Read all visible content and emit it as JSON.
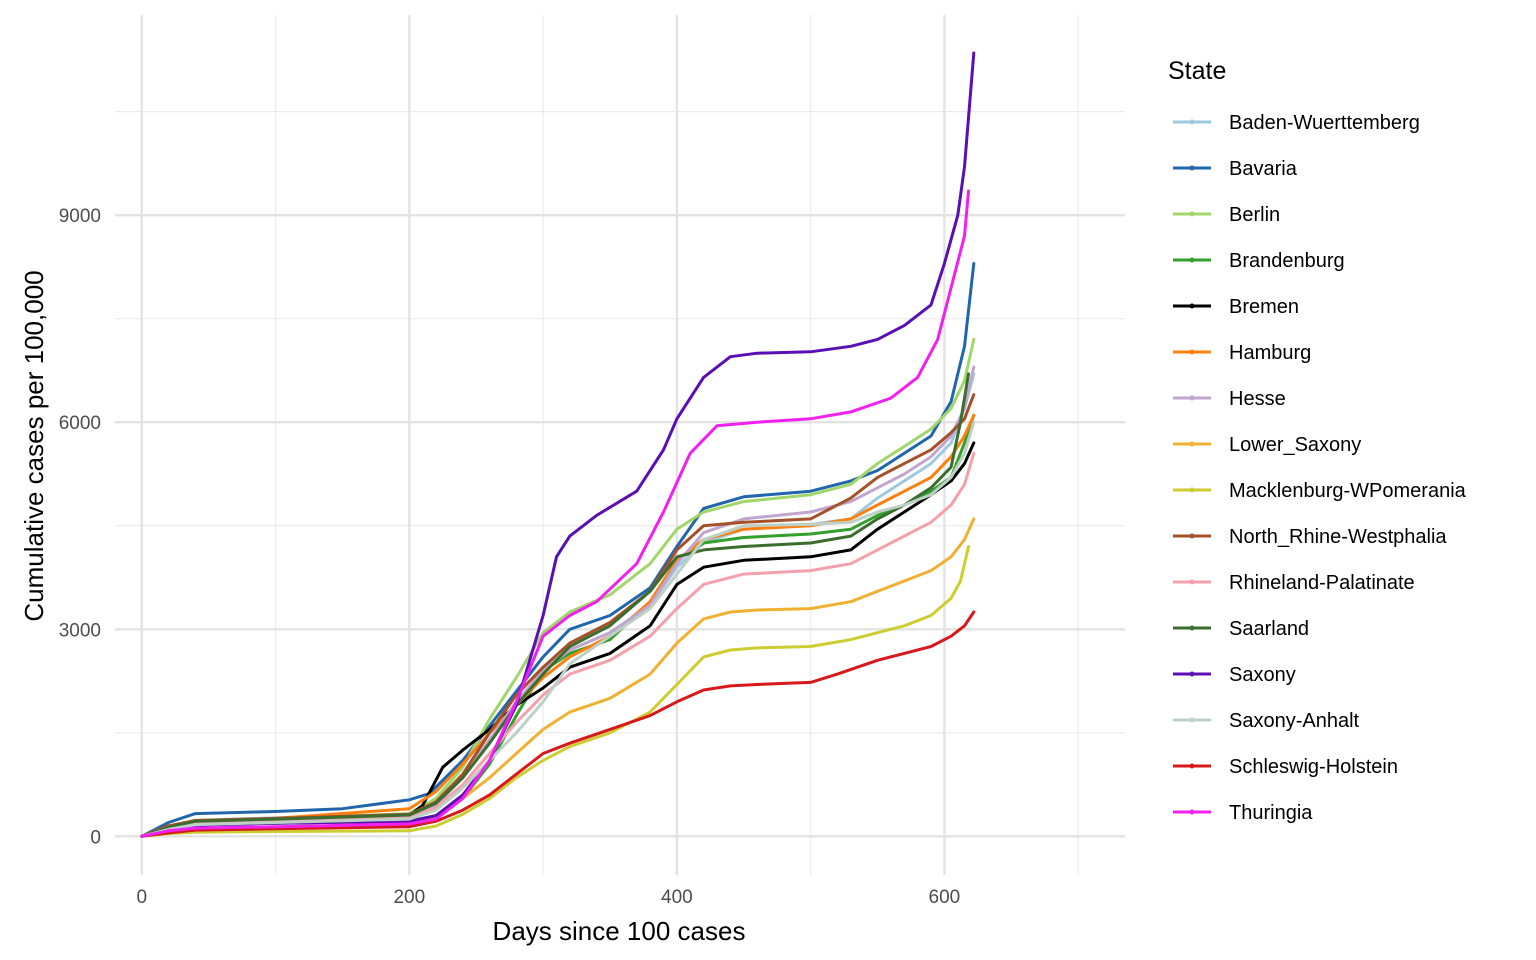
{
  "chart_data": {
    "type": "line",
    "title": "",
    "xlabel": "Days since 100 cases",
    "ylabel": "Cumulative cases per 100,000",
    "xlim": [
      -20,
      735
    ],
    "ylim": [
      -560,
      11900
    ],
    "x_ticks": [
      0,
      200,
      400,
      600
    ],
    "x_tick_labels": [
      "0",
      "200",
      "400",
      "600"
    ],
    "x_minor_ticks": [
      100,
      300,
      500,
      700
    ],
    "y_ticks": [
      0,
      3000,
      6000,
      9000
    ],
    "y_tick_labels": [
      "0",
      "3000",
      "6000",
      "9000"
    ],
    "y_minor_ticks": [
      1500,
      4500,
      7500,
      10500
    ],
    "grid": true,
    "legend_title": "State",
    "legend_position": "right",
    "series": [
      {
        "name": "Baden-Wuerttemberg",
        "color": "#9ecae1",
        "x": [
          0,
          20,
          40,
          100,
          200,
          220,
          240,
          260,
          280,
          300,
          320,
          350,
          380,
          400,
          420,
          450,
          500,
          530,
          550,
          570,
          590,
          605,
          615,
          622
        ],
        "y": [
          0,
          120,
          230,
          270,
          320,
          500,
          900,
          1500,
          2050,
          2450,
          2700,
          2950,
          3350,
          3900,
          4250,
          4450,
          4520,
          4600,
          4900,
          5150,
          5400,
          5700,
          6200,
          6700
        ]
      },
      {
        "name": "Bavaria",
        "color": "#2166ac",
        "x": [
          0,
          20,
          40,
          100,
          150,
          200,
          215,
          240,
          260,
          280,
          300,
          320,
          350,
          380,
          400,
          420,
          450,
          500,
          530,
          550,
          570,
          590,
          605,
          615,
          622
        ],
        "y": [
          0,
          200,
          330,
          360,
          400,
          530,
          620,
          1100,
          1600,
          2100,
          2600,
          3000,
          3200,
          3600,
          4200,
          4750,
          4920,
          5000,
          5150,
          5300,
          5550,
          5800,
          6300,
          7100,
          8300
        ]
      },
      {
        "name": "Berlin",
        "color": "#a1d76a",
        "x": [
          0,
          20,
          40,
          100,
          200,
          220,
          240,
          260,
          280,
          300,
          320,
          350,
          380,
          400,
          420,
          450,
          500,
          530,
          550,
          570,
          590,
          605,
          615,
          622
        ],
        "y": [
          0,
          150,
          230,
          260,
          330,
          550,
          1000,
          1700,
          2300,
          2950,
          3250,
          3500,
          3950,
          4450,
          4700,
          4850,
          4950,
          5100,
          5400,
          5650,
          5900,
          6200,
          6600,
          7200
        ]
      },
      {
        "name": "Brandenburg",
        "color": "#33a02c",
        "x": [
          0,
          20,
          40,
          100,
          200,
          220,
          240,
          260,
          280,
          300,
          320,
          350,
          380,
          400,
          420,
          450,
          500,
          530,
          550,
          570,
          590,
          605,
          615,
          622
        ],
        "y": [
          0,
          100,
          170,
          190,
          220,
          300,
          550,
          1050,
          1750,
          2400,
          2650,
          2850,
          3400,
          4000,
          4250,
          4330,
          4380,
          4450,
          4650,
          4800,
          5000,
          5200,
          5700,
          6100
        ]
      },
      {
        "name": "Bremen",
        "color": "#000000",
        "x": [
          0,
          20,
          40,
          100,
          200,
          210,
          225,
          240,
          260,
          280,
          300,
          320,
          350,
          380,
          400,
          420,
          450,
          500,
          530,
          550,
          570,
          590,
          605,
          615,
          622
        ],
        "y": [
          0,
          120,
          200,
          230,
          300,
          450,
          1000,
          1250,
          1550,
          1900,
          2150,
          2450,
          2650,
          3050,
          3650,
          3900,
          4000,
          4050,
          4150,
          4450,
          4700,
          4950,
          5150,
          5400,
          5700
        ]
      },
      {
        "name": "Hamburg",
        "color": "#ff7f0e",
        "x": [
          0,
          20,
          40,
          100,
          200,
          220,
          240,
          260,
          280,
          300,
          320,
          350,
          380,
          400,
          420,
          450,
          500,
          530,
          550,
          570,
          590,
          605,
          615,
          622
        ],
        "y": [
          0,
          150,
          220,
          260,
          400,
          650,
          1050,
          1500,
          1900,
          2300,
          2600,
          2900,
          3400,
          4000,
          4300,
          4450,
          4500,
          4600,
          4800,
          5000,
          5200,
          5500,
          5800,
          6100
        ]
      },
      {
        "name": "Hesse",
        "color": "#c2a5cf",
        "x": [
          0,
          20,
          40,
          100,
          200,
          220,
          240,
          260,
          280,
          300,
          320,
          350,
          380,
          400,
          420,
          450,
          500,
          530,
          550,
          570,
          590,
          605,
          615,
          622
        ],
        "y": [
          0,
          130,
          200,
          230,
          300,
          450,
          850,
          1400,
          1950,
          2400,
          2700,
          2950,
          3350,
          3950,
          4400,
          4600,
          4700,
          4850,
          5050,
          5250,
          5500,
          5800,
          6200,
          6800
        ]
      },
      {
        "name": "Lower_Saxony",
        "color": "#f0b133",
        "x": [
          0,
          20,
          40,
          100,
          200,
          220,
          240,
          260,
          280,
          300,
          320,
          350,
          380,
          400,
          420,
          440,
          460,
          500,
          530,
          550,
          570,
          590,
          605,
          615,
          622
        ],
        "y": [
          0,
          70,
          110,
          130,
          170,
          300,
          550,
          850,
          1200,
          1550,
          1800,
          2000,
          2350,
          2800,
          3150,
          3250,
          3280,
          3300,
          3400,
          3550,
          3700,
          3850,
          4050,
          4300,
          4600
        ]
      },
      {
        "name": "Macklenburg-WPomerania",
        "color": "#cdcd32",
        "x": [
          0,
          20,
          40,
          100,
          200,
          220,
          240,
          260,
          280,
          300,
          320,
          350,
          380,
          400,
          420,
          440,
          460,
          500,
          530,
          550,
          570,
          590,
          605,
          612,
          618
        ],
        "y": [
          0,
          40,
          60,
          70,
          80,
          150,
          320,
          550,
          850,
          1100,
          1300,
          1500,
          1800,
          2200,
          2600,
          2700,
          2730,
          2750,
          2850,
          2950,
          3050,
          3200,
          3450,
          3700,
          4200
        ]
      },
      {
        "name": "North_Rhine-Westphalia",
        "color": "#a6502a",
        "x": [
          0,
          20,
          40,
          100,
          200,
          220,
          240,
          260,
          280,
          300,
          320,
          350,
          380,
          400,
          420,
          450,
          500,
          530,
          550,
          570,
          590,
          605,
          615,
          622
        ],
        "y": [
          0,
          150,
          230,
          260,
          320,
          500,
          900,
          1500,
          2050,
          2450,
          2800,
          3100,
          3550,
          4150,
          4500,
          4550,
          4600,
          4900,
          5200,
          5400,
          5600,
          5850,
          6050,
          6400
        ]
      },
      {
        "name": "Rhineland-Palatinate",
        "color": "#f4a0ac",
        "x": [
          0,
          20,
          40,
          100,
          200,
          220,
          240,
          260,
          280,
          300,
          320,
          350,
          380,
          400,
          420,
          450,
          500,
          530,
          550,
          570,
          590,
          605,
          615,
          622
        ],
        "y": [
          0,
          120,
          190,
          220,
          280,
          420,
          750,
          1200,
          1650,
          2050,
          2350,
          2550,
          2900,
          3300,
          3650,
          3800,
          3850,
          3950,
          4150,
          4350,
          4550,
          4800,
          5100,
          5550
        ]
      },
      {
        "name": "Saarland",
        "color": "#3a6e2e",
        "x": [
          0,
          20,
          40,
          100,
          200,
          220,
          240,
          260,
          280,
          300,
          320,
          350,
          380,
          400,
          420,
          450,
          500,
          530,
          550,
          570,
          590,
          605,
          612,
          618
        ],
        "y": [
          0,
          130,
          220,
          250,
          310,
          480,
          850,
          1350,
          1900,
          2350,
          2750,
          3050,
          3550,
          4050,
          4150,
          4200,
          4250,
          4350,
          4600,
          4800,
          5050,
          5350,
          6000,
          6700
        ]
      },
      {
        "name": "Saxony",
        "color": "#5a0fb4",
        "x": [
          0,
          20,
          40,
          100,
          200,
          220,
          240,
          260,
          280,
          300,
          310,
          320,
          340,
          370,
          390,
          400,
          420,
          440,
          460,
          500,
          530,
          550,
          570,
          590,
          600,
          610,
          615,
          622
        ],
        "y": [
          0,
          100,
          160,
          190,
          220,
          300,
          600,
          1100,
          1900,
          3200,
          4050,
          4350,
          4650,
          5000,
          5600,
          6050,
          6650,
          6950,
          7000,
          7020,
          7100,
          7200,
          7400,
          7700,
          8300,
          9000,
          9700,
          11350
        ]
      },
      {
        "name": "Saxony-Anhalt",
        "color": "#bdd0c5",
        "x": [
          0,
          20,
          40,
          100,
          200,
          220,
          240,
          260,
          280,
          300,
          320,
          350,
          380,
          400,
          420,
          450,
          500,
          530,
          550,
          570,
          590,
          605,
          615,
          622
        ],
        "y": [
          0,
          100,
          170,
          200,
          250,
          380,
          700,
          1100,
          1500,
          1950,
          2500,
          2900,
          3300,
          3800,
          4300,
          4500,
          4520,
          4550,
          4700,
          4800,
          4950,
          5200,
          5550,
          6000
        ]
      },
      {
        "name": "Schleswig-Holstein",
        "color": "#d7191c",
        "x": [
          0,
          20,
          40,
          100,
          200,
          220,
          240,
          260,
          280,
          300,
          320,
          350,
          380,
          400,
          420,
          440,
          460,
          500,
          520,
          550,
          570,
          590,
          605,
          615,
          622
        ],
        "y": [
          0,
          50,
          90,
          110,
          140,
          220,
          380,
          600,
          900,
          1200,
          1350,
          1550,
          1750,
          1950,
          2120,
          2180,
          2200,
          2230,
          2350,
          2550,
          2650,
          2750,
          2900,
          3050,
          3250
        ]
      },
      {
        "name": "Thuringia",
        "color": "#f020f0",
        "x": [
          0,
          20,
          40,
          100,
          200,
          220,
          240,
          260,
          280,
          300,
          320,
          340,
          370,
          390,
          410,
          430,
          460,
          500,
          530,
          560,
          580,
          595,
          605,
          615,
          618
        ],
        "y": [
          0,
          80,
          120,
          140,
          180,
          250,
          550,
          1100,
          1950,
          2900,
          3200,
          3400,
          3950,
          4700,
          5550,
          5950,
          6000,
          6050,
          6150,
          6350,
          6650,
          7200,
          7950,
          8700,
          9350
        ]
      }
    ]
  }
}
